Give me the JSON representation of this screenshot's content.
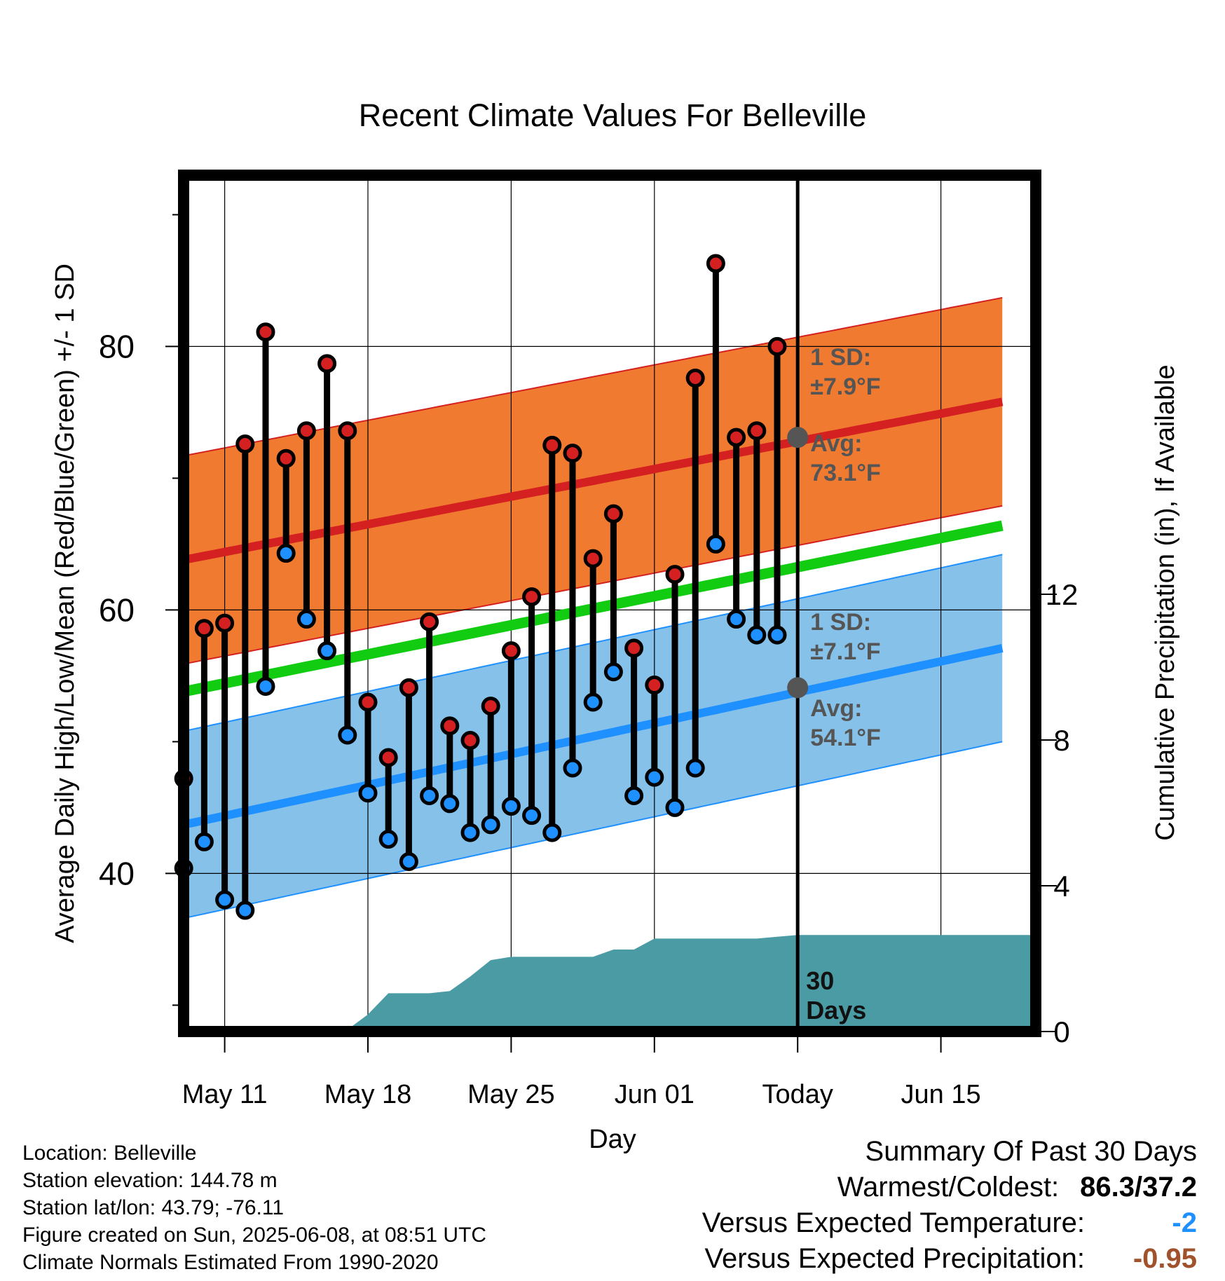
{
  "chart_data": {
    "type": "line",
    "title": "Recent Climate Values For Belleville",
    "xlabel": "Day",
    "ylabel": "Average Daily High/Low/Mean (Red/Blue/Green) +/- 1 SD",
    "y2label": "Cumulative Precipitation (in), If Available",
    "x_tick_labels": [
      "May 11",
      "May 18",
      "May 25",
      "Jun 01",
      "Today",
      "Jun 15"
    ],
    "x_tick_days": [
      3,
      10,
      17,
      24,
      31,
      38
    ],
    "x_range_days": [
      0,
      41
    ],
    "ylim": [
      28,
      93
    ],
    "y_ticks": [
      40,
      60,
      80
    ],
    "y2lim": [
      0,
      23.5
    ],
    "y2_ticks": [
      0,
      4,
      8,
      12
    ],
    "grid": true,
    "days": [
      1,
      2,
      3,
      4,
      5,
      6,
      7,
      8,
      9,
      10,
      11,
      12,
      13,
      14,
      15,
      16,
      17,
      18,
      19,
      20,
      21,
      22,
      23,
      24,
      25,
      26,
      27,
      28,
      29,
      30
    ],
    "highs": [
      47.2,
      58.6,
      59.0,
      72.6,
      81.1,
      71.5,
      73.6,
      78.7,
      73.6,
      53.0,
      48.8,
      54.1,
      59.1,
      51.2,
      50.1,
      52.7,
      56.9,
      61.0,
      72.5,
      71.9,
      63.9,
      67.3,
      57.1,
      54.3,
      62.7,
      77.6,
      86.3,
      73.1,
      73.6,
      80.0
    ],
    "lows": [
      40.4,
      42.4,
      38.0,
      37.2,
      54.2,
      64.3,
      59.3,
      56.9,
      50.5,
      46.1,
      42.6,
      40.9,
      45.9,
      45.3,
      43.1,
      43.7,
      45.1,
      44.4,
      43.1,
      48.0,
      53.0,
      55.3,
      45.9,
      47.3,
      45.0,
      48.0,
      65.0,
      59.3,
      58.1,
      58.1
    ],
    "normal_high": {
      "start": 63.8,
      "end": 75.8,
      "sd": 7.9
    },
    "normal_low": {
      "start": 43.7,
      "end": 57.1,
      "sd": 7.1
    },
    "normal_mean": {
      "start": 53.8,
      "end": 66.4
    },
    "today_day": 31,
    "precip_cumulative": [
      0,
      0,
      0,
      0,
      0,
      0,
      0,
      0.05,
      0.05,
      0.47,
      1.05,
      1.05,
      1.05,
      1.11,
      1.51,
      1.96,
      2.05,
      2.05,
      2.05,
      2.05,
      2.05,
      2.25,
      2.25,
      2.55,
      2.55,
      2.55,
      2.55,
      2.55,
      2.55,
      2.6,
      2.65,
      2.65,
      2.65,
      2.65,
      2.65,
      2.65,
      2.65,
      2.65,
      2.65,
      2.65,
      2.65
    ],
    "annotations": {
      "high_sd": "1 SD:",
      "high_sd_value": "±7.9°F",
      "high_avg": "Avg:",
      "high_avg_value": "73.1°F",
      "low_sd": "1 SD:",
      "low_sd_value": "±7.1°F",
      "low_avg": "Avg:",
      "low_avg_value": "54.1°F",
      "high_avg_marker": 73.1,
      "low_avg_marker": 54.1,
      "days_count": "30",
      "days_word": "Days"
    },
    "colors": {
      "high_band": "#f07a30",
      "high_line": "#d42020",
      "low_band": "#85c1e8",
      "low_line": "#1e90ff",
      "mean_line": "#11cc11",
      "precip": "#4a9ba4",
      "high_dot": "#d42020",
      "low_dot": "#1e90ff",
      "annotation_text": "#555555"
    }
  },
  "info": {
    "location": "Location: Belleville",
    "elevation": "Station elevation: 144.78 m",
    "latlon": "Station lat/lon: 43.79; -76.11",
    "created": "Figure created on Sun, 2025-06-08, at 08:51 UTC",
    "normals": "Climate Normals Estimated From 1990-2020"
  },
  "summary": {
    "heading": "Summary Of Past 30 Days",
    "warmest_label": "Warmest/Coldest:",
    "warmest_value": "86.3/37.2",
    "temp_label": "Versus Expected Temperature:",
    "temp_value": "-2",
    "temp_color": "#1e90ff",
    "precip_label": "Versus Expected Precipitation:",
    "precip_value": "-0.95",
    "precip_color": "#a0522d"
  }
}
